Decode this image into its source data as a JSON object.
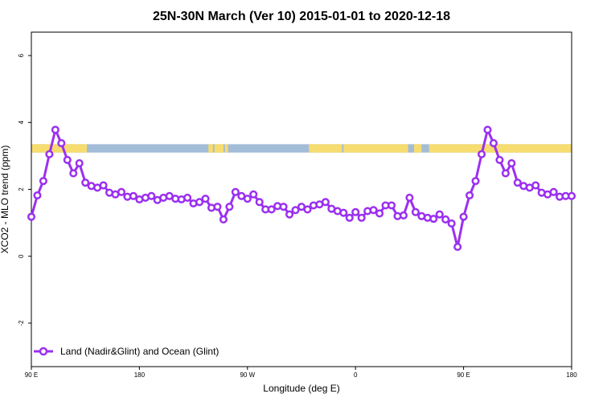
{
  "chart_data": {
    "type": "line",
    "title": "25N-30N March (Ver 10)   2015-01-01 to 2020-12-18",
    "xlabel": "Longitude (deg E)",
    "ylabel": "XCO2 - MLO trend (ppm)",
    "xlim": [
      90,
      450
    ],
    "ylim": [
      -3.3,
      6.7
    ],
    "x_ticks": [
      {
        "value": 90,
        "label": "90 E"
      },
      {
        "value": 162,
        "label": "180"
      },
      {
        "value": 234,
        "label": "90 W"
      },
      {
        "value": 306,
        "label": "0"
      },
      {
        "value": 378,
        "label": "90 E"
      },
      {
        "value": 450,
        "label": "180"
      }
    ],
    "y_ticks": [
      {
        "value": -2,
        "label": "-2"
      },
      {
        "value": 0,
        "label": "0"
      },
      {
        "value": 2,
        "label": "2"
      },
      {
        "value": 4,
        "label": "4"
      },
      {
        "value": 6,
        "label": "6"
      }
    ],
    "legend_position": "bottom-left",
    "series": [
      {
        "name": "Land (Nadir&Glint) and Ocean (Glint)",
        "color": "#9b30f0",
        "x": [
          90,
          94,
          98,
          102,
          106,
          110,
          114,
          118,
          122,
          126,
          130,
          134,
          138,
          142,
          146,
          150,
          154,
          158,
          162,
          166,
          170,
          174,
          178,
          182,
          186,
          190,
          194,
          198,
          202,
          206,
          210,
          214,
          218,
          222,
          226,
          230,
          234,
          238,
          242,
          246,
          250,
          254,
          258,
          262,
          266,
          270,
          274,
          278,
          282,
          286,
          290,
          294,
          298,
          302,
          306,
          310,
          314,
          318,
          322,
          326,
          330,
          334,
          338,
          342,
          346,
          350,
          354,
          358,
          362,
          366,
          370,
          374,
          378,
          382,
          386,
          390,
          394,
          398,
          402,
          406,
          410,
          414,
          418,
          422,
          426,
          430,
          434,
          438,
          442,
          446,
          450
        ],
        "values": [
          1.18,
          1.82,
          2.25,
          3.05,
          3.78,
          3.38,
          2.88,
          2.48,
          2.78,
          2.2,
          2.1,
          2.05,
          2.12,
          1.9,
          1.85,
          1.92,
          1.78,
          1.8,
          1.7,
          1.75,
          1.8,
          1.68,
          1.75,
          1.8,
          1.72,
          1.7,
          1.75,
          1.58,
          1.62,
          1.72,
          1.45,
          1.48,
          1.1,
          1.48,
          1.92,
          1.8,
          1.72,
          1.85,
          1.62,
          1.4,
          1.4,
          1.5,
          1.48,
          1.25,
          1.38,
          1.48,
          1.4,
          1.52,
          1.55,
          1.62,
          1.42,
          1.35,
          1.3,
          1.15,
          1.32,
          1.15,
          1.35,
          1.38,
          1.28,
          1.52,
          1.52,
          1.2,
          1.22,
          1.75,
          1.32,
          1.2,
          1.15,
          1.12,
          1.25,
          1.1,
          0.98,
          0.28,
          1.18,
          1.82,
          2.25,
          3.05,
          3.78,
          3.38,
          2.88,
          2.48,
          2.78,
          2.2,
          2.1,
          2.05,
          2.12,
          1.9,
          1.85,
          1.92,
          1.78,
          1.8,
          1.8
        ]
      }
    ],
    "reference_band": {
      "y_range": [
        3.1,
        3.35
      ],
      "land_color": "#f7dc6f",
      "ocean_color": "#a3bcd8",
      "land_segments": [
        [
          90,
          127
        ],
        [
          208,
          211
        ],
        [
          212,
          218
        ],
        [
          219,
          221
        ],
        [
          275,
          297
        ],
        [
          298,
          341
        ],
        [
          345,
          350
        ],
        [
          355,
          452
        ]
      ]
    }
  }
}
